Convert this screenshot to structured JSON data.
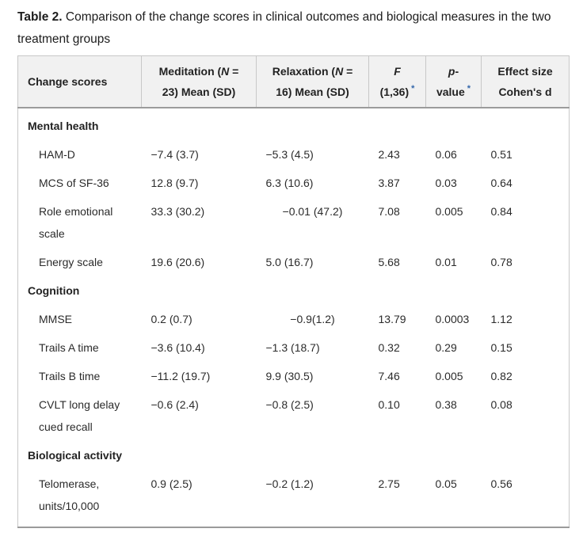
{
  "title": {
    "label": "Table 2.",
    "text": " Comparison of the change scores in clinical outcomes and biological measures in the two treatment groups"
  },
  "colors": {
    "accent": "#3366aa",
    "header_bg": "#f1f1f1",
    "border": "#c8c8c8",
    "border_strong": "#9b9b9b"
  },
  "table": {
    "columns": [
      {
        "key": "label",
        "width": 156,
        "align": "left",
        "header": [
          {
            "t": "Change scores"
          }
        ]
      },
      {
        "key": "meditation",
        "width": 145,
        "align": "center",
        "header": [
          {
            "t": "Meditation ("
          },
          {
            "t": "N",
            "style": "i"
          },
          {
            "t": " ="
          },
          {
            "style": "br"
          },
          {
            "t": "23) Mean (SD)"
          }
        ]
      },
      {
        "key": "relaxation",
        "width": 142,
        "align": "center",
        "header": [
          {
            "t": "Relaxation ("
          },
          {
            "t": "N",
            "style": "i"
          },
          {
            "t": " ="
          },
          {
            "style": "br"
          },
          {
            "t": "16) Mean (SD)"
          }
        ]
      },
      {
        "key": "f",
        "width": 72,
        "align": "center",
        "header": [
          {
            "t": "F",
            "style": "i"
          },
          {
            "style": "br"
          },
          {
            "t": "(1,36)"
          },
          {
            "t": "*",
            "style": "sup"
          }
        ]
      },
      {
        "key": "p",
        "width": 70,
        "align": "center",
        "header": [
          {
            "t": "p",
            "style": "i"
          },
          {
            "t": "-"
          },
          {
            "style": "br"
          },
          {
            "t": "value"
          },
          {
            "t": "*",
            "style": "sup"
          }
        ]
      },
      {
        "key": "d",
        "width": 111,
        "align": "center",
        "header": [
          {
            "t": "Effect size"
          },
          {
            "style": "br"
          },
          {
            "t": "Cohen's d"
          }
        ]
      }
    ],
    "sections": [
      {
        "label": "Mental health",
        "rows": [
          {
            "label": "HAM-D",
            "meditation": "−7.4 (3.7)",
            "relaxation": "−5.3 (4.5)",
            "f": "2.43",
            "p": "0.06",
            "d": "0.51"
          },
          {
            "label": "MCS of SF-36",
            "meditation": "12.8 (9.7)",
            "relaxation": "6.3 (10.6)",
            "f": "3.87",
            "p": "0.03",
            "d": "0.64"
          },
          {
            "label": "Role emotional scale",
            "meditation": "33.3 (30.2)",
            "relaxation": "−0.01 (47.2)",
            "relaxation_align": "center",
            "f": "7.08",
            "p": "0.005",
            "d": "0.84"
          },
          {
            "label": "Energy scale",
            "meditation": "19.6 (20.6)",
            "relaxation": "5.0 (16.7)",
            "f": "5.68",
            "p": "0.01",
            "d": "0.78"
          }
        ]
      },
      {
        "label": "Cognition",
        "rows": [
          {
            "label": "MMSE",
            "meditation": "0.2 (0.7)",
            "relaxation": "−0.9(1.2)",
            "relaxation_align": "center",
            "f": "13.79",
            "p": "0.0003",
            "d": "1.12"
          },
          {
            "label": "Trails A time",
            "meditation": "−3.6 (10.4)",
            "relaxation": "−1.3 (18.7)",
            "f": "0.32",
            "p": "0.29",
            "d": "0.15"
          },
          {
            "label": "Trails B time",
            "meditation": "−11.2 (19.7)",
            "relaxation": "9.9 (30.5)",
            "f": "7.46",
            "p": "0.005",
            "d": "0.82"
          },
          {
            "label": "CVLT long delay cued recall",
            "meditation": "−0.6 (2.4)",
            "relaxation": "−0.8 (2.5)",
            "f": "0.10",
            "p": "0.38",
            "d": "0.08"
          }
        ]
      },
      {
        "label": "Biological activity",
        "rows": [
          {
            "label": "Telomerase, units/10,000",
            "meditation": "0.9 (2.5)",
            "relaxation": "−0.2 (1.2)",
            "f": "2.75",
            "p": "0.05",
            "d": "0.56"
          }
        ]
      }
    ]
  }
}
